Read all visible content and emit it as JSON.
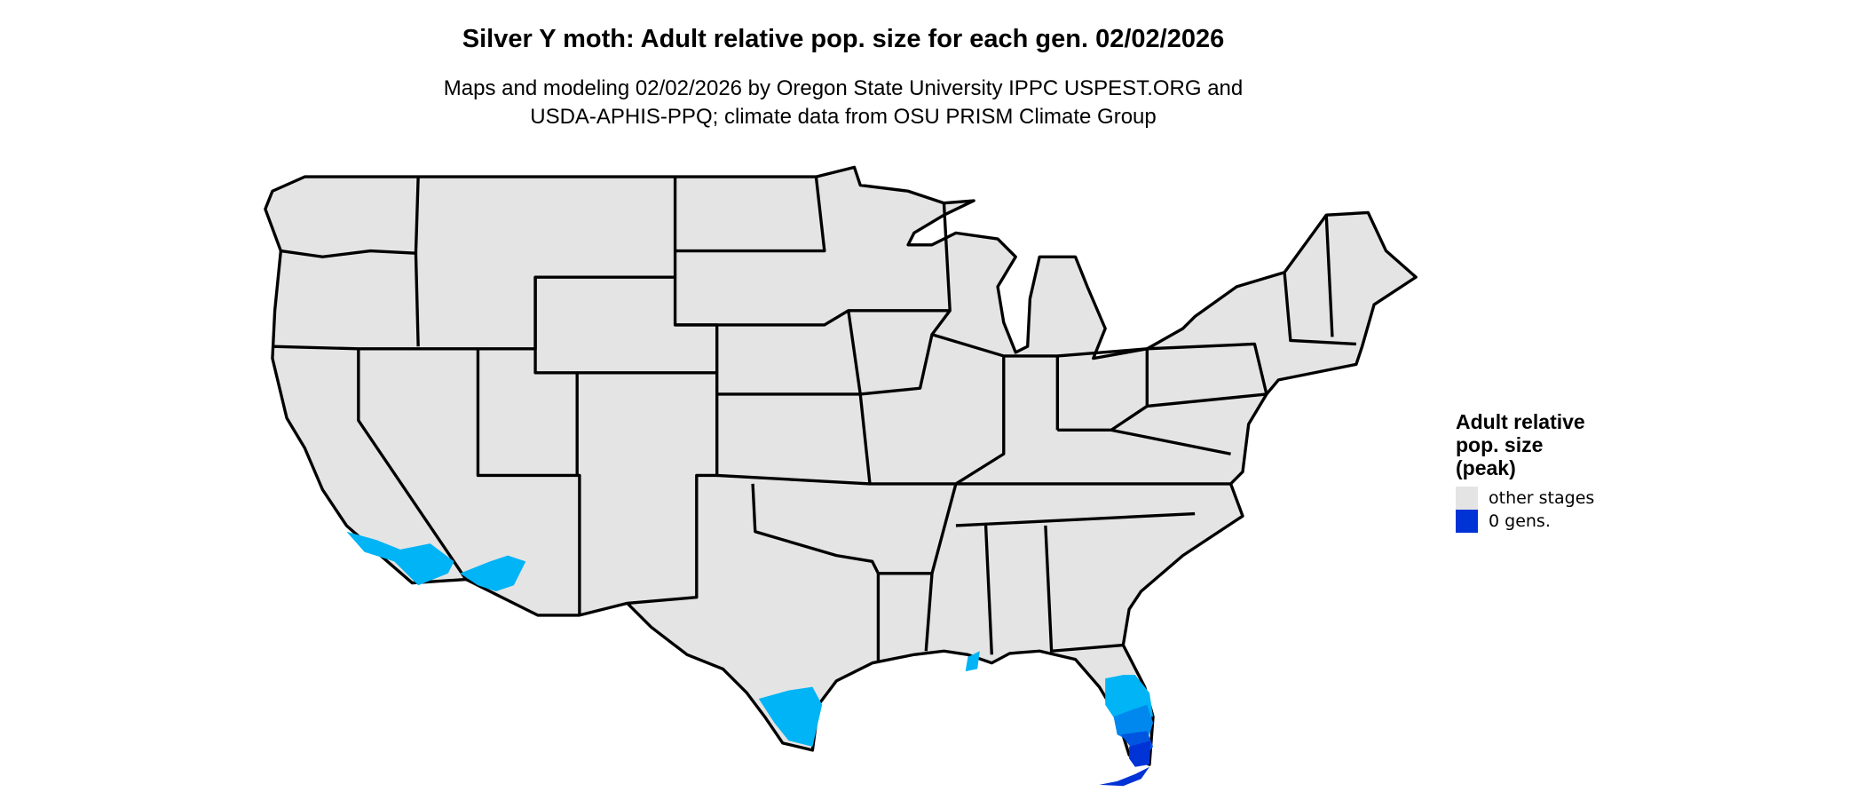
{
  "title": "Silver Y moth: Adult relative pop. size for each gen. 02/02/2026",
  "subtitle_line1": "Maps and modeling 02/02/2026 by Oregon State University IPPC USPEST.ORG and",
  "subtitle_line2": "USDA-APHIS-PPQ; climate data from OSU PRISM Climate Group",
  "legend": {
    "title_line1": "Adult relative",
    "title_line2": "pop. size",
    "title_line3": "(peak)",
    "items": [
      {
        "label": "other stages",
        "color": "#e4e4e4"
      },
      {
        "label": "0 gens.",
        "color": "#0033d6"
      }
    ]
  },
  "colors": {
    "land": "#e4e4e4",
    "border": "#000000",
    "light_blue": "#00b4f5",
    "mid_blue": "#0088ee",
    "blue": "#0055e0",
    "dark_blue": "#0033d6"
  }
}
